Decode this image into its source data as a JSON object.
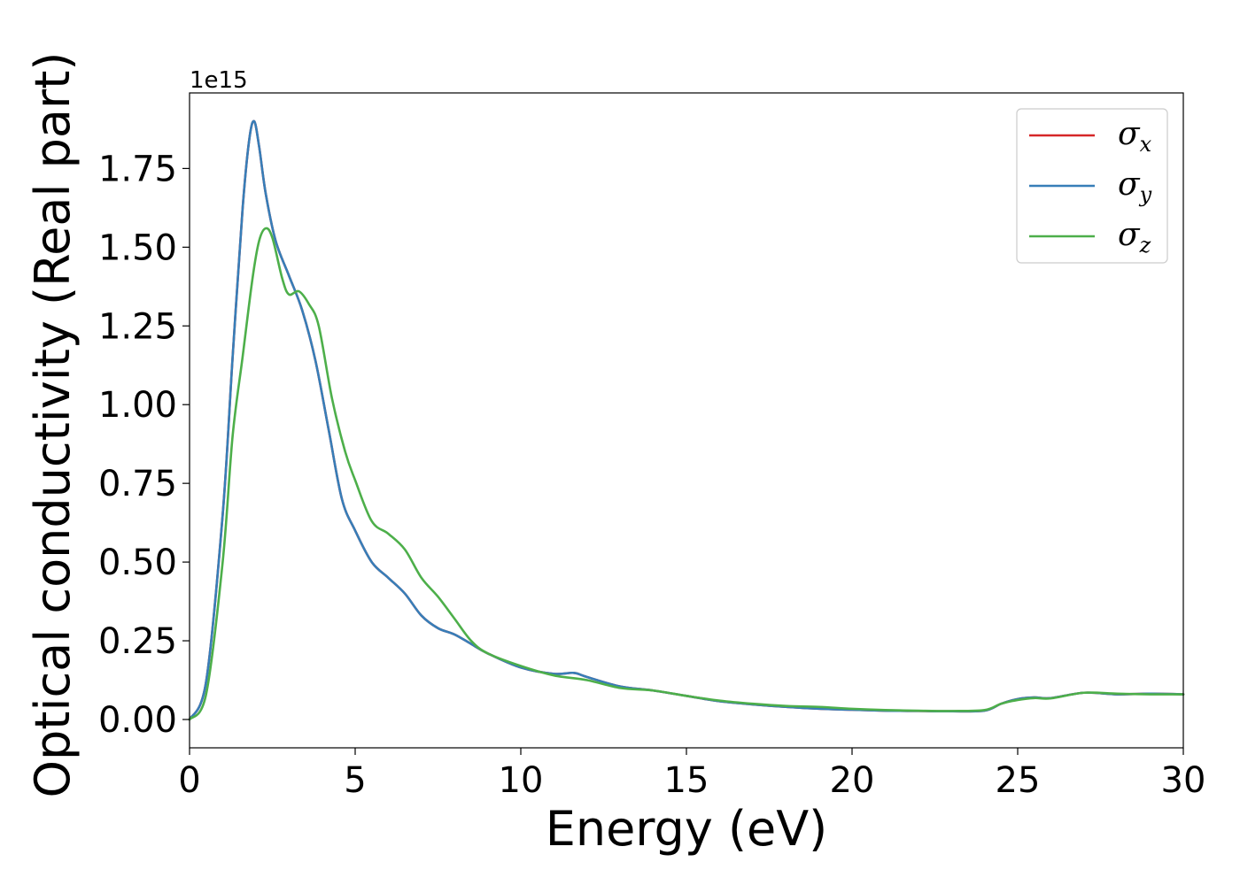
{
  "chart_data": {
    "type": "line",
    "title": "",
    "xlabel": "Energy (eV)",
    "ylabel": "Optical conductivity (Real part)",
    "y_offset_label": "1e15",
    "y_scale": 1000000000000000.0,
    "xlim": [
      0,
      30
    ],
    "ylim": [
      -0.09,
      1.99
    ],
    "xticks": [
      0,
      5,
      10,
      15,
      20,
      25,
      30
    ],
    "xtick_labels": [
      "0",
      "5",
      "10",
      "15",
      "20",
      "25",
      "30"
    ],
    "yticks": [
      0.0,
      0.25,
      0.5,
      0.75,
      1.0,
      1.25,
      1.5,
      1.75
    ],
    "ytick_labels": [
      "0.00",
      "0.25",
      "0.50",
      "0.75",
      "1.00",
      "1.25",
      "1.50",
      "1.75"
    ],
    "grid": false,
    "legend_position": "top-right",
    "series": [
      {
        "name": "σx",
        "symbol": "σ",
        "subscript": "x",
        "color": "#d62728",
        "x": [
          0,
          0.5,
          1.0,
          1.3,
          1.6,
          1.8,
          1.95,
          2.1,
          2.3,
          2.6,
          3.0,
          3.4,
          3.8,
          4.2,
          4.6,
          5.0,
          5.5,
          6.0,
          6.5,
          7.0,
          7.5,
          8.0,
          8.5,
          9.0,
          10.0,
          11.0,
          11.6,
          12.0,
          13.0,
          14.0,
          15.0,
          16.0,
          17.0,
          18.0,
          19.0,
          20.0,
          21.0,
          22.0,
          23.0,
          24.0,
          24.5,
          25.0,
          25.5,
          26.0,
          27.0,
          28.0,
          29.0,
          30.0
        ],
        "y": [
          0.0,
          0.12,
          0.65,
          1.15,
          1.62,
          1.84,
          1.9,
          1.82,
          1.67,
          1.52,
          1.41,
          1.3,
          1.14,
          0.92,
          0.7,
          0.6,
          0.5,
          0.45,
          0.4,
          0.33,
          0.29,
          0.27,
          0.24,
          0.21,
          0.165,
          0.145,
          0.148,
          0.135,
          0.105,
          0.092,
          0.075,
          0.058,
          0.048,
          0.04,
          0.034,
          0.031,
          0.028,
          0.027,
          0.026,
          0.028,
          0.05,
          0.065,
          0.07,
          0.068,
          0.085,
          0.08,
          0.082,
          0.08
        ]
      },
      {
        "name": "σy",
        "symbol": "σ",
        "subscript": "y",
        "color": "#377eb8",
        "x": [
          0,
          0.5,
          1.0,
          1.3,
          1.6,
          1.8,
          1.95,
          2.1,
          2.3,
          2.6,
          3.0,
          3.4,
          3.8,
          4.2,
          4.6,
          5.0,
          5.5,
          6.0,
          6.5,
          7.0,
          7.5,
          8.0,
          8.5,
          9.0,
          10.0,
          11.0,
          11.6,
          12.0,
          13.0,
          14.0,
          15.0,
          16.0,
          17.0,
          18.0,
          19.0,
          20.0,
          21.0,
          22.0,
          23.0,
          24.0,
          24.5,
          25.0,
          25.5,
          26.0,
          27.0,
          28.0,
          29.0,
          30.0
        ],
        "y": [
          0.0,
          0.12,
          0.65,
          1.15,
          1.62,
          1.84,
          1.9,
          1.82,
          1.67,
          1.52,
          1.41,
          1.3,
          1.14,
          0.92,
          0.7,
          0.6,
          0.5,
          0.45,
          0.4,
          0.33,
          0.29,
          0.27,
          0.24,
          0.21,
          0.165,
          0.145,
          0.148,
          0.135,
          0.105,
          0.092,
          0.075,
          0.058,
          0.048,
          0.04,
          0.034,
          0.031,
          0.028,
          0.027,
          0.026,
          0.028,
          0.05,
          0.065,
          0.07,
          0.068,
          0.085,
          0.08,
          0.082,
          0.08
        ]
      },
      {
        "name": "σz",
        "symbol": "σ",
        "subscript": "z",
        "color": "#4daf4a",
        "x": [
          0,
          0.5,
          1.0,
          1.3,
          1.6,
          1.9,
          2.1,
          2.3,
          2.5,
          2.8,
          3.0,
          3.3,
          3.6,
          3.9,
          4.3,
          4.7,
          5.0,
          5.5,
          6.0,
          6.5,
          7.0,
          7.5,
          8.0,
          8.5,
          9.0,
          10.0,
          11.0,
          12.0,
          13.0,
          14.0,
          15.0,
          16.0,
          17.0,
          18.0,
          19.0,
          20.0,
          21.0,
          22.0,
          23.0,
          24.0,
          24.5,
          25.0,
          25.5,
          26.0,
          27.0,
          28.0,
          29.0,
          30.0
        ],
        "y": [
          0.0,
          0.08,
          0.5,
          0.9,
          1.15,
          1.4,
          1.52,
          1.56,
          1.53,
          1.4,
          1.35,
          1.36,
          1.32,
          1.25,
          1.02,
          0.85,
          0.76,
          0.63,
          0.59,
          0.54,
          0.45,
          0.39,
          0.32,
          0.25,
          0.21,
          0.17,
          0.14,
          0.125,
          0.1,
          0.092,
          0.075,
          0.06,
          0.05,
          0.043,
          0.04,
          0.034,
          0.03,
          0.028,
          0.027,
          0.03,
          0.05,
          0.062,
          0.068,
          0.067,
          0.085,
          0.082,
          0.08,
          0.08
        ]
      }
    ]
  }
}
